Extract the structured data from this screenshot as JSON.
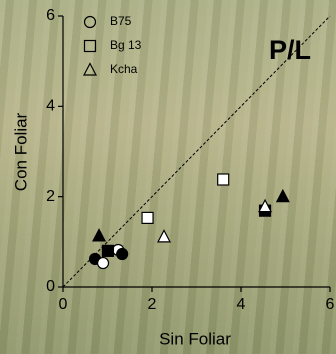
{
  "chart_data": {
    "type": "scatter",
    "annotation": "P/L",
    "x_label": "Sin Foliar",
    "y_label": "Con Foliar",
    "xlim": [
      0,
      6
    ],
    "ylim": [
      0,
      6
    ],
    "xticks": [
      0,
      2,
      4,
      6
    ],
    "yticks": [
      0,
      2,
      4,
      6
    ],
    "identity_line": true,
    "series": [
      {
        "name": "B75",
        "marker": "circle",
        "color": "#000000",
        "x": [
          0.72,
          0.9,
          1.24,
          1.33
        ],
        "values": [
          0.62,
          0.53,
          0.82,
          0.73
        ],
        "fills": [
          "#000000",
          "#ffffff",
          "#ffffff",
          "#000000"
        ]
      },
      {
        "name": "Bg 13",
        "marker": "square",
        "color": "#000000",
        "x": [
          1.01,
          1.9,
          3.6,
          4.54
        ],
        "values": [
          0.8,
          1.53,
          2.38,
          1.69
        ],
        "fills": [
          "#000000",
          "#ffffff",
          "#ffffff",
          "#000000"
        ]
      },
      {
        "name": "Kcha",
        "marker": "triangle",
        "color": "#000000",
        "x": [
          0.81,
          2.27,
          4.54,
          4.94
        ],
        "values": [
          1.13,
          1.11,
          1.78,
          2.0
        ],
        "fills": [
          "#000000",
          "#ffffff",
          "#ffffff",
          "#000000"
        ]
      }
    ]
  }
}
